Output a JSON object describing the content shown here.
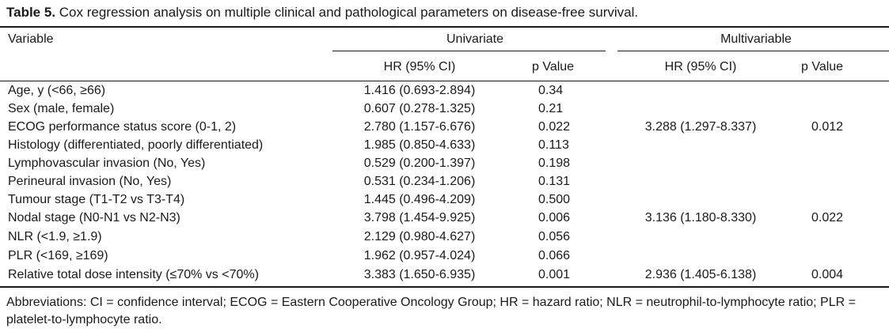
{
  "caption": {
    "label": "Table 5.",
    "text": " Cox regression analysis on multiple clinical and pathological parameters on disease-free survival."
  },
  "table": {
    "header": {
      "variable": "Variable",
      "univariate": "Univariate",
      "multivariable": "Multivariable",
      "u_hr": "HR (95% CI)",
      "u_p": "p Value",
      "m_hr": "HR (95% CI)",
      "m_p": "p Value"
    },
    "rows": [
      {
        "variable": "Age, y (<66, ≥66)",
        "u_hr": "1.416 (0.693-2.894)",
        "u_p": "0.34",
        "m_hr": "",
        "m_p": ""
      },
      {
        "variable": "Sex (male, female)",
        "u_hr": "0.607 (0.278-1.325)",
        "u_p": "0.21",
        "m_hr": "",
        "m_p": ""
      },
      {
        "variable": "ECOG performance status score (0-1, 2)",
        "u_hr": "2.780 (1.157-6.676)",
        "u_p": "0.022",
        "m_hr": "3.288 (1.297-8.337)",
        "m_p": "0.012"
      },
      {
        "variable": "Histology (differentiated, poorly differentiated)",
        "u_hr": "1.985 (0.850-4.633)",
        "u_p": "0.113",
        "m_hr": "",
        "m_p": ""
      },
      {
        "variable": "Lymphovascular invasion (No, Yes)",
        "u_hr": "0.529 (0.200-1.397)",
        "u_p": "0.198",
        "m_hr": "",
        "m_p": ""
      },
      {
        "variable": "Perineural invasion (No, Yes)",
        "u_hr": "0.531 (0.234-1.206)",
        "u_p": "0.131",
        "m_hr": "",
        "m_p": ""
      },
      {
        "variable": "Tumour stage (T1-T2 vs T3-T4)",
        "u_hr": "1.445 (0.496-4.209)",
        "u_p": "0.500",
        "m_hr": "",
        "m_p": ""
      },
      {
        "variable": "Nodal stage (N0-N1 vs N2-N3)",
        "u_hr": "3.798 (1.454-9.925)",
        "u_p": "0.006",
        "m_hr": "3.136 (1.180-8.330)",
        "m_p": "0.022"
      },
      {
        "variable": "NLR (<1.9, ≥1.9)",
        "u_hr": "2.129 (0.980-4.627)",
        "u_p": "0.056",
        "m_hr": "",
        "m_p": ""
      },
      {
        "variable": "PLR (<169, ≥169)",
        "u_hr": "1.962 (0.957-4.024)",
        "u_p": "0.066",
        "m_hr": "",
        "m_p": ""
      },
      {
        "variable": "Relative total dose intensity (≤70% vs <70%)",
        "u_hr": "3.383 (1.650-6.935)",
        "u_p": "0.001",
        "m_hr": "2.936 (1.405-6.138)",
        "m_p": "0.004"
      }
    ]
  },
  "footnote": "Abbreviations: CI = confidence interval; ECOG = Eastern Cooperative Oncology Group; HR = hazard ratio; NLR = neutrophil-to-lymphocyte ratio; PLR = platelet-to-lymphocyte ratio."
}
